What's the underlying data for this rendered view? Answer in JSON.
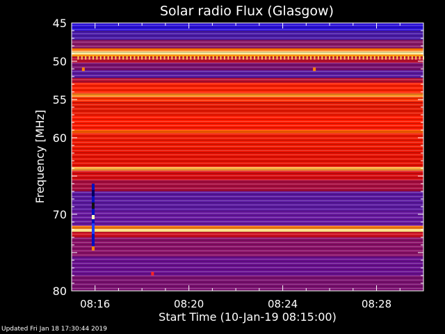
{
  "chart_data": {
    "type": "heatmap",
    "title": "Solar radio Flux (Glasgow)",
    "xlabel": "Start Time (10-Jan-19 08:15:00)",
    "ylabel": "Frequency [MHz]",
    "xlim": [
      "08:15:00",
      "08:30:00"
    ],
    "ylim": [
      45,
      80
    ],
    "y_inverted": true,
    "x_ticks": [
      "08:16",
      "08:20",
      "08:24",
      "08:28"
    ],
    "x_tick_minutes": [
      16,
      20,
      24,
      28
    ],
    "y_ticks": [
      45,
      50,
      55,
      60,
      70,
      80
    ],
    "colormap": "black-blue-red-yellow-white",
    "rows": [
      {
        "f": [
          45.0,
          46.0
        ],
        "c": "#2a10d8"
      },
      {
        "f": [
          46.0,
          47.2
        ],
        "c": "#4a1aa8"
      },
      {
        "f": [
          47.2,
          48.3
        ],
        "c": "#8a1868"
      },
      {
        "f": [
          48.3,
          48.7
        ],
        "c": "#ff7000"
      },
      {
        "f": [
          48.7,
          49.1
        ],
        "c": "#fff0a0"
      },
      {
        "f": [
          49.1,
          49.4
        ],
        "c": "#ff9000"
      },
      {
        "f": [
          49.4,
          50.2
        ],
        "c": "#c01030"
      },
      {
        "f": [
          50.2,
          51.2
        ],
        "c": "#7a1070"
      },
      {
        "f": [
          51.2,
          52.2
        ],
        "c": "#5a1aa0"
      },
      {
        "f": [
          52.2,
          52.8
        ],
        "c": "#b81030"
      },
      {
        "f": [
          52.8,
          54.2
        ],
        "c": "#ff2000"
      },
      {
        "f": [
          54.2,
          54.7
        ],
        "c": "#ff9020"
      },
      {
        "f": [
          54.7,
          55.3
        ],
        "c": "#ff3000"
      },
      {
        "f": [
          55.3,
          57.0
        ],
        "c": "#e81800"
      },
      {
        "f": [
          57.0,
          59.0
        ],
        "c": "#ff1a00"
      },
      {
        "f": [
          59.0,
          59.4
        ],
        "c": "#ff6000"
      },
      {
        "f": [
          59.4,
          61.5
        ],
        "c": "#f01800"
      },
      {
        "f": [
          61.5,
          63.8
        ],
        "c": "#e81000"
      },
      {
        "f": [
          63.8,
          64.3
        ],
        "c": "#ffb040"
      },
      {
        "f": [
          64.3,
          65.5
        ],
        "c": "#d80c10"
      },
      {
        "f": [
          65.5,
          67.0
        ],
        "c": "#a80c40"
      },
      {
        "f": [
          67.0,
          69.5
        ],
        "c": "#5a18a0"
      },
      {
        "f": [
          69.5,
          71.5
        ],
        "c": "#6818a0"
      },
      {
        "f": [
          71.5,
          71.9
        ],
        "c": "#ff8010"
      },
      {
        "f": [
          71.9,
          72.3
        ],
        "c": "#ffe080"
      },
      {
        "f": [
          72.3,
          73.0
        ],
        "c": "#d01020"
      },
      {
        "f": [
          73.0,
          75.5
        ],
        "c": "#8a1068"
      },
      {
        "f": [
          75.5,
          78.0
        ],
        "c": "#6a1090"
      },
      {
        "f": [
          78.0,
          80.0
        ],
        "c": "#7a1070"
      }
    ],
    "burst": {
      "minute": 15.92,
      "f_start": 66.0,
      "f_end": 74.5
    },
    "spots": [
      {
        "minute": 15.5,
        "f": 51.1,
        "c": "#ff8000"
      },
      {
        "minute": 25.35,
        "f": 51.1,
        "c": "#ff8000"
      },
      {
        "minute": 18.45,
        "f": 77.8,
        "c": "#ff2020"
      }
    ],
    "comb": {
      "f": 49.6,
      "start_minute": 15.25,
      "step_minutes": 0.16,
      "c": "#ffd060"
    }
  },
  "footer": "Updated Fri Jan 18 17:30:44 2019"
}
